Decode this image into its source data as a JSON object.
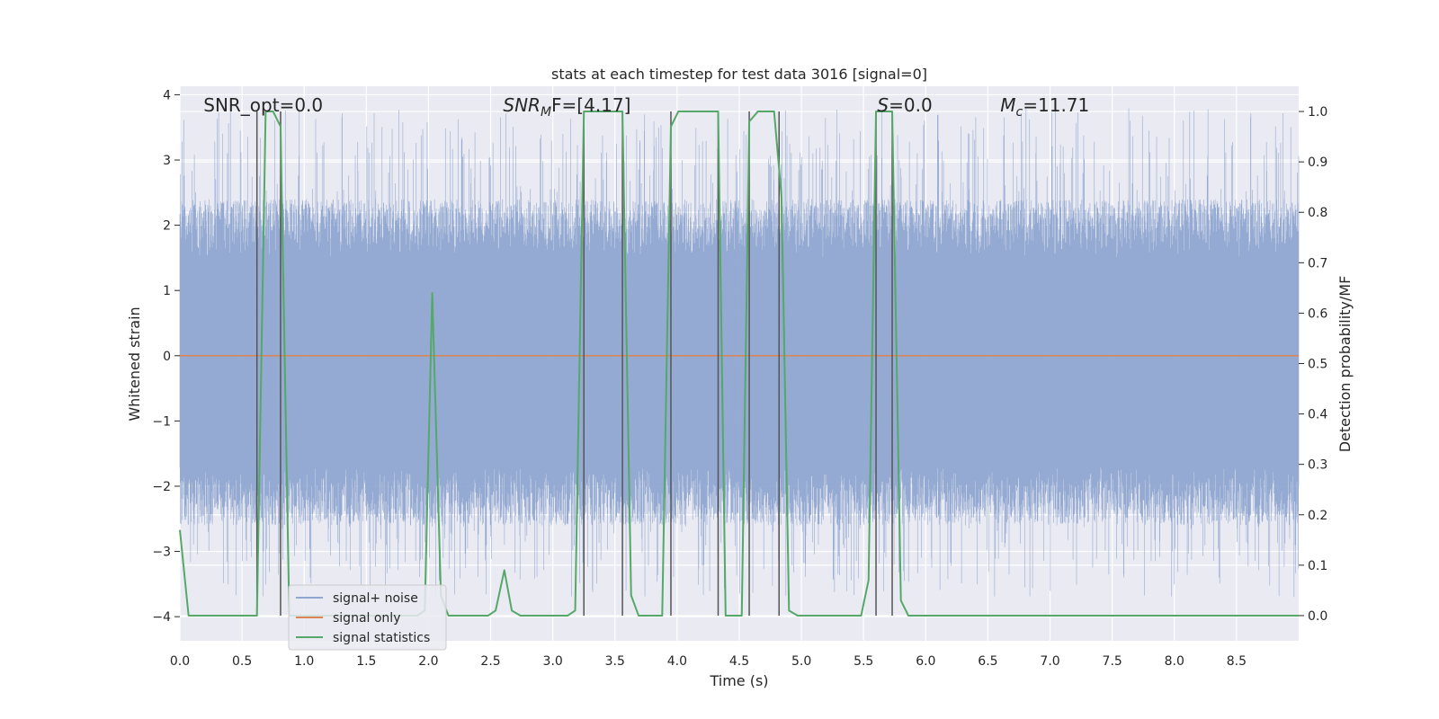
{
  "chart_data": {
    "type": "line",
    "title": "stats at each timestep for test data 3016 [signal=0]",
    "xlabel": "Time (s)",
    "ylabel_left": "Whitened strain",
    "ylabel_right": "Detection probability/MF",
    "xlim": [
      0.0,
      9.0
    ],
    "ylim_left": [
      -4.37,
      4.13
    ],
    "ylim_right": [
      -0.05,
      1.05
    ],
    "xticks": [
      "0.0",
      "0.5",
      "1.0",
      "1.5",
      "2.0",
      "2.5",
      "3.0",
      "3.5",
      "4.0",
      "4.5",
      "5.0",
      "5.5",
      "6.0",
      "6.5",
      "7.0",
      "7.5",
      "8.0",
      "8.5"
    ],
    "xtick_values": [
      0,
      0.5,
      1,
      1.5,
      2,
      2.5,
      3,
      3.5,
      4,
      4.5,
      5,
      5.5,
      6,
      6.5,
      7,
      7.5,
      8,
      8.5
    ],
    "yticks_left": [
      "−4",
      "−3",
      "−2",
      "−1",
      "0",
      "1",
      "2",
      "3",
      "4"
    ],
    "ytick_values_left": [
      -4,
      -3,
      -2,
      -1,
      0,
      1,
      2,
      3,
      4
    ],
    "yticks_right": [
      "0.0",
      "0.1",
      "0.2",
      "0.3",
      "0.4",
      "0.5",
      "0.6",
      "0.7",
      "0.8",
      "0.9",
      "1.0"
    ],
    "ytick_values_right": [
      0,
      0.1,
      0.2,
      0.3,
      0.4,
      0.5,
      0.6,
      0.7,
      0.8,
      0.9,
      1.0
    ],
    "grid": true,
    "annotations": [
      {
        "id": "snr-opt",
        "text": "SNR_opt=0.0",
        "x": 0.19
      },
      {
        "id": "snr-mf",
        "text": "SNR_MF=[4.17]",
        "x": 2.6,
        "math": {
          "base": "SNR",
          "sub": "M",
          "rest": "F=[4.17]"
        }
      },
      {
        "id": "s-stat",
        "text": "S=0.0",
        "x": 5.61,
        "math": {
          "base": "S",
          "sub": "",
          "rest": "=0.0"
        }
      },
      {
        "id": "mc",
        "text": "M_c=11.71",
        "x": 6.6,
        "math": {
          "base": "M",
          "sub": "c",
          "rest": "=11.71"
        }
      }
    ],
    "legend": {
      "placement": "lower-left",
      "entries": [
        {
          "label": "signal+ noise",
          "color": "#8fa6d0"
        },
        {
          "label": "signal only",
          "color": "#dd8452"
        },
        {
          "label": "signal statistics",
          "color": "#55a868"
        }
      ]
    },
    "series": [
      {
        "name": "signal+ noise",
        "axis": "left",
        "kind": "noise-band",
        "color": "#8fa6d0",
        "typical_range": [
          -1.7,
          1.5
        ],
        "peak_range": [
          -3.7,
          3.8
        ],
        "samples": 4096
      },
      {
        "name": "signal only",
        "axis": "left",
        "color": "#dd8452",
        "x": [
          0.0,
          9.0
        ],
        "y": [
          0.0,
          0.0
        ]
      },
      {
        "name": "signal statistics",
        "axis": "right",
        "color": "#55a868",
        "x": [
          0.0,
          0.07,
          0.14,
          0.21,
          0.28,
          0.35,
          0.42,
          0.49,
          0.56,
          0.62,
          0.69,
          0.75,
          0.81,
          0.88,
          0.94,
          1.01,
          1.07,
          1.14,
          1.2,
          1.27,
          1.33,
          1.39,
          1.46,
          1.52,
          1.59,
          1.65,
          1.71,
          1.78,
          1.84,
          1.91,
          1.97,
          2.03,
          2.1,
          2.16,
          2.22,
          2.29,
          2.35,
          2.42,
          2.48,
          2.54,
          2.61,
          2.67,
          2.74,
          2.8,
          2.86,
          2.93,
          2.99,
          3.06,
          3.12,
          3.18,
          3.25,
          3.31,
          3.37,
          3.44,
          3.5,
          3.56,
          3.63,
          3.69,
          3.76,
          3.82,
          3.88,
          3.95,
          4.01,
          4.08,
          4.14,
          4.2,
          4.27,
          4.33,
          4.39,
          4.46,
          4.52,
          4.58,
          4.65,
          4.71,
          4.78,
          4.84,
          4.9,
          4.97,
          5.03,
          5.1,
          5.16,
          5.22,
          5.29,
          5.35,
          5.41,
          5.48,
          5.54,
          5.6,
          5.67,
          5.73,
          5.8,
          5.86,
          5.92,
          5.99,
          6.05,
          9.0
        ],
        "y": [
          0.17,
          0.0,
          0.0,
          0.0,
          0.0,
          0.0,
          0.0,
          0.0,
          0.0,
          0.0,
          1.0,
          1.0,
          0.97,
          0.0,
          0.0,
          0.0,
          0.0,
          0.0,
          0.0,
          0.0,
          0.0,
          0.0,
          0.0,
          0.0,
          0.0,
          0.0,
          0.0,
          0.0,
          0.0,
          0.0,
          0.01,
          0.64,
          0.04,
          0.0,
          0.0,
          0.0,
          0.0,
          0.0,
          0.0,
          0.01,
          0.09,
          0.01,
          0.0,
          0.0,
          0.0,
          0.0,
          0.0,
          0.0,
          0.0,
          0.01,
          1.0,
          1.0,
          1.0,
          1.0,
          1.0,
          1.0,
          0.04,
          0.0,
          0.0,
          0.0,
          0.0,
          0.97,
          1.0,
          1.0,
          1.0,
          1.0,
          1.0,
          1.0,
          0.0,
          0.0,
          0.0,
          0.98,
          1.0,
          1.0,
          1.0,
          0.83,
          0.01,
          0.0,
          0.0,
          0.0,
          0.0,
          0.0,
          0.0,
          0.0,
          0.0,
          0.0,
          0.07,
          1.0,
          1.0,
          1.0,
          0.03,
          0.0,
          0.0,
          0.0,
          0.0,
          0.0
        ]
      }
    ],
    "detection_markers": {
      "color": "#555555",
      "x": [
        0.62,
        0.81,
        3.25,
        3.56,
        3.95,
        4.33,
        4.58,
        4.82,
        5.6,
        5.73
      ]
    }
  }
}
